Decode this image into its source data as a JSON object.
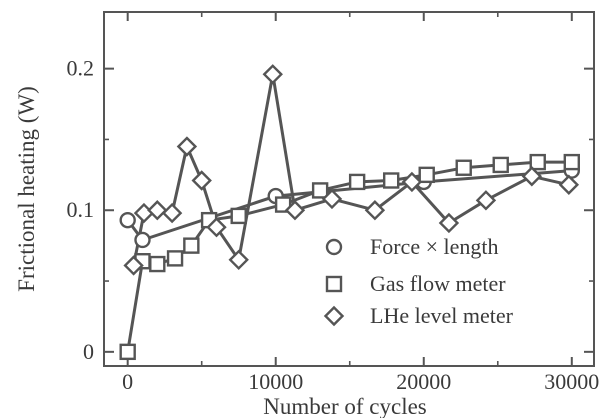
{
  "chart_data": {
    "type": "line",
    "title": "",
    "xlabel": "Number of cycles",
    "ylabel": "Frictional heating (W)",
    "xlim": [
      -1600,
      31500
    ],
    "ylim": [
      -0.01,
      0.24
    ],
    "x_ticks": [
      0,
      10000,
      20000,
      30000
    ],
    "x_tick_labels": [
      "0",
      "10000",
      "20000",
      "30000"
    ],
    "y_ticks": [
      0,
      0.1,
      0.2
    ],
    "y_tick_labels": [
      "0",
      "0.1",
      "0.2"
    ],
    "grid": false,
    "legend_position": "lower-right",
    "colors": {
      "ink": "#555555",
      "background": "#ffffff"
    },
    "series": [
      {
        "name": "Force × length",
        "marker": "circle",
        "points": [
          [
            0,
            0.093
          ],
          [
            1000,
            0.079
          ],
          [
            10000,
            0.11
          ],
          [
            20000,
            0.12
          ],
          [
            30000,
            0.128
          ]
        ]
      },
      {
        "name": "Gas flow meter",
        "marker": "square",
        "points": [
          [
            0,
            0.0
          ],
          [
            1000,
            0.064
          ],
          [
            2000,
            0.062
          ],
          [
            3200,
            0.066
          ],
          [
            4300,
            0.075
          ],
          [
            5500,
            0.093
          ],
          [
            7500,
            0.096
          ],
          [
            10500,
            0.104
          ],
          [
            13000,
            0.114
          ],
          [
            15500,
            0.12
          ],
          [
            17800,
            0.121
          ],
          [
            20200,
            0.125
          ],
          [
            22700,
            0.13
          ],
          [
            25200,
            0.132
          ],
          [
            27700,
            0.134
          ],
          [
            30000,
            0.134
          ]
        ]
      },
      {
        "name": "LHe level meter",
        "marker": "diamond",
        "points": [
          [
            400,
            0.061
          ],
          [
            1100,
            0.098
          ],
          [
            2000,
            0.1
          ],
          [
            3000,
            0.098
          ],
          [
            4000,
            0.145
          ],
          [
            5000,
            0.121
          ],
          [
            6000,
            0.088
          ],
          [
            7500,
            0.065
          ],
          [
            9800,
            0.196
          ],
          [
            11300,
            0.1
          ],
          [
            13800,
            0.108
          ],
          [
            16700,
            0.1
          ],
          [
            19200,
            0.12
          ],
          [
            21700,
            0.091
          ],
          [
            24200,
            0.107
          ],
          [
            27300,
            0.124
          ],
          [
            29800,
            0.118
          ]
        ]
      }
    ]
  },
  "legend": {
    "entries": [
      {
        "marker": "circle",
        "label_main": "Force",
        "label_symbol": "×",
        "label_tail": "length"
      },
      {
        "marker": "square",
        "label_main": "Gas flow meter",
        "label_symbol": "",
        "label_tail": ""
      },
      {
        "marker": "diamond",
        "label_main": "LHe level meter",
        "label_symbol": "",
        "label_tail": ""
      }
    ]
  }
}
